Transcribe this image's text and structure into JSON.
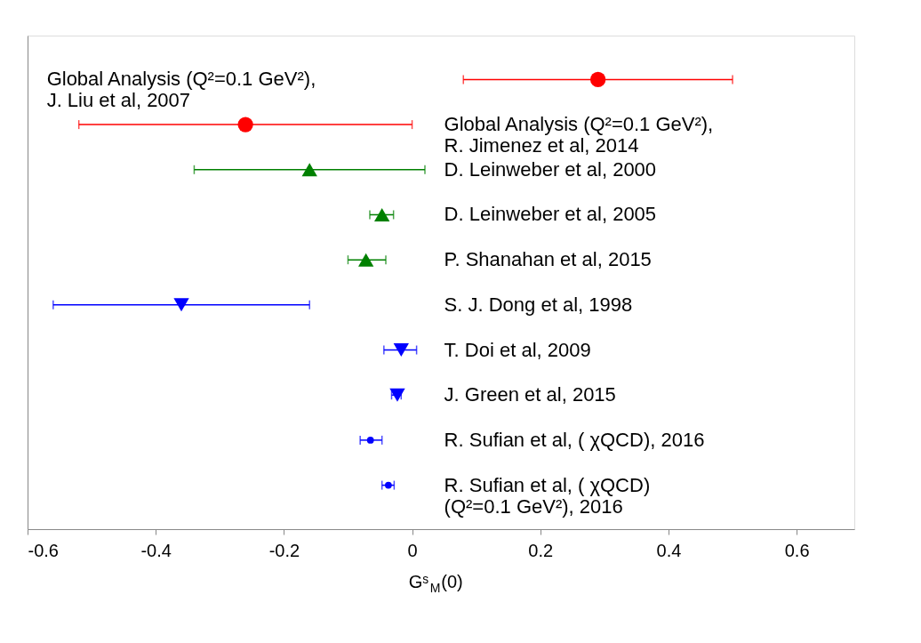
{
  "chart_data": {
    "type": "scatter",
    "orientation": "horizontal",
    "categories": [
      "Global Analysis (Q²=0.1 GeV²),\nJ. Liu et al, 2007",
      "Global Analysis (Q²=0.1 GeV²),\n R. Jimenez et al, 2014",
      "D. Leinweber et al, 2000",
      "D. Leinweber et al, 2005",
      "P. Shanahan et al, 2015",
      "S. J. Dong et al, 1998",
      "T. Doi et al, 2009",
      "J. Green et al, 2015",
      "R. Sufian et al, ( χQCD), 2016",
      "R. Sufian et al, ( χQCD)\n(Q²=0.1 GeV²), 2016"
    ],
    "series": [
      {
        "color": "#ff0000",
        "marker": "circle",
        "values": [
          0.29,
          -0.26,
          null,
          null,
          null,
          null,
          null,
          null,
          null,
          null
        ],
        "errors": [
          [
            0.08,
            0.5
          ],
          [
            -0.52,
            0.0
          ],
          null,
          null,
          null,
          null,
          null,
          null,
          null,
          null
        ]
      },
      {
        "color": "#008000",
        "marker": "triangle",
        "values": [
          null,
          null,
          -0.16,
          -0.047,
          -0.072,
          null,
          null,
          null,
          null,
          null
        ],
        "errors": [
          null,
          null,
          [
            -0.34,
            0.02
          ],
          [
            -0.066,
            -0.029
          ],
          [
            -0.1,
            -0.041
          ],
          null,
          null,
          null,
          null,
          null
        ]
      },
      {
        "color": "#0000ff",
        "marker": "triangle-down",
        "values": [
          null,
          null,
          null,
          null,
          null,
          -0.36,
          -0.017,
          -0.023,
          null,
          null
        ],
        "errors": [
          null,
          null,
          null,
          null,
          null,
          [
            -0.56,
            -0.16
          ],
          [
            -0.044,
            0.007
          ],
          [
            -0.032,
            -0.017
          ],
          null,
          null
        ]
      },
      {
        "color": "#0000ff",
        "marker": "dot",
        "values": [
          null,
          null,
          null,
          null,
          null,
          null,
          null,
          null,
          -0.065,
          -0.037
        ],
        "errors": [
          null,
          null,
          null,
          null,
          null,
          null,
          null,
          null,
          [
            -0.081,
            -0.047
          ],
          [
            -0.047,
            -0.028
          ]
        ]
      }
    ],
    "xlabel": "Gˢ$_{M}$(0)",
    "xlim": [
      -0.6,
      0.69
    ],
    "xticks": [
      -0.6,
      -0.4,
      -0.2,
      0,
      0.2,
      0.4,
      0.6
    ],
    "tick_labels": "x",
    "grid": false
  }
}
